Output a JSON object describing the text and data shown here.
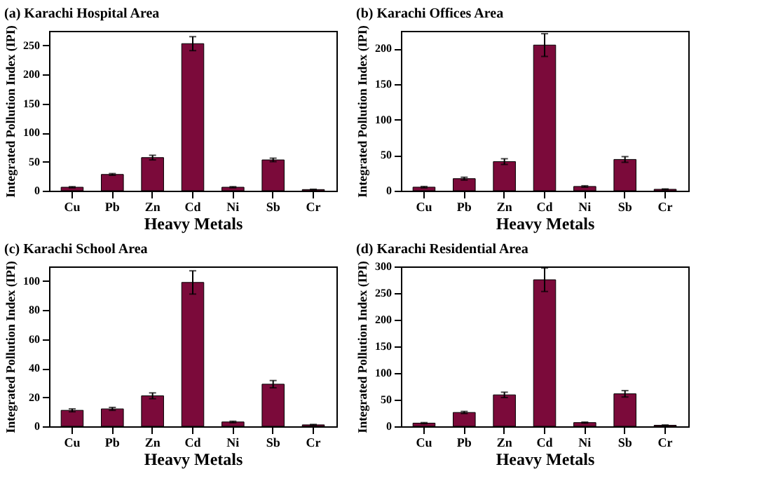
{
  "chart_data": [
    {
      "type": "bar",
      "title": "(a) Karachi Hospital Area",
      "xlabel": "Heavy Metals",
      "ylabel": "Integrated Pollution Index (IPI)",
      "categories": [
        "Cu",
        "Pb",
        "Zn",
        "Cd",
        "Ni",
        "Sb",
        "Cr"
      ],
      "color": "#7b0a3a",
      "values": [
        6,
        28,
        57,
        253,
        6,
        53,
        2
      ],
      "errors": [
        1,
        1.5,
        4,
        12,
        1,
        3,
        0.5
      ],
      "ylim": [
        0,
        275
      ],
      "yticks": [
        0,
        50,
        100,
        150,
        200,
        250
      ],
      "grid": false,
      "legend": false
    },
    {
      "type": "bar",
      "title": "(b) Karachi Offices Area",
      "xlabel": "Heavy Metals",
      "ylabel": "Integrated Pollution Index (IPI)",
      "categories": [
        "Cu",
        "Pb",
        "Zn",
        "Cd",
        "Ni",
        "Sb",
        "Cr"
      ],
      "color": "#7b0a3a",
      "values": [
        5,
        17,
        41,
        205,
        6,
        44,
        2
      ],
      "errors": [
        1,
        2,
        4,
        16,
        1,
        4,
        0.5
      ],
      "ylim": [
        0,
        225
      ],
      "yticks": [
        0,
        50,
        100,
        150,
        200
      ],
      "grid": false,
      "legend": false
    },
    {
      "type": "bar",
      "title": "(c) Karachi School Area",
      "xlabel": "Heavy Metals",
      "ylabel": "Integrated Pollution Index (IPI)",
      "categories": [
        "Cu",
        "Pb",
        "Zn",
        "Cd",
        "Ni",
        "Sb",
        "Cr"
      ],
      "color": "#7b0a3a",
      "values": [
        11,
        12,
        21,
        99,
        3,
        29,
        1
      ],
      "errors": [
        1,
        1,
        2,
        8,
        0.5,
        2.5,
        0.3
      ],
      "ylim": [
        0,
        110
      ],
      "yticks": [
        0,
        20,
        40,
        60,
        80,
        100
      ],
      "grid": false,
      "legend": false
    },
    {
      "type": "bar",
      "title": "(d) Karachi Residential Area",
      "xlabel": "Heavy Metals",
      "ylabel": "Integrated Pollution Index (IPI)",
      "categories": [
        "Cu",
        "Pb",
        "Zn",
        "Cd",
        "Ni",
        "Sb",
        "Cr"
      ],
      "color": "#7b0a3a",
      "values": [
        6,
        26,
        59,
        275,
        7,
        61,
        2
      ],
      "errors": [
        1,
        2,
        5,
        22,
        1,
        6,
        0.5
      ],
      "ylim": [
        0,
        300
      ],
      "yticks": [
        0,
        50,
        100,
        150,
        200,
        250,
        300
      ],
      "grid": false,
      "legend": false
    }
  ]
}
